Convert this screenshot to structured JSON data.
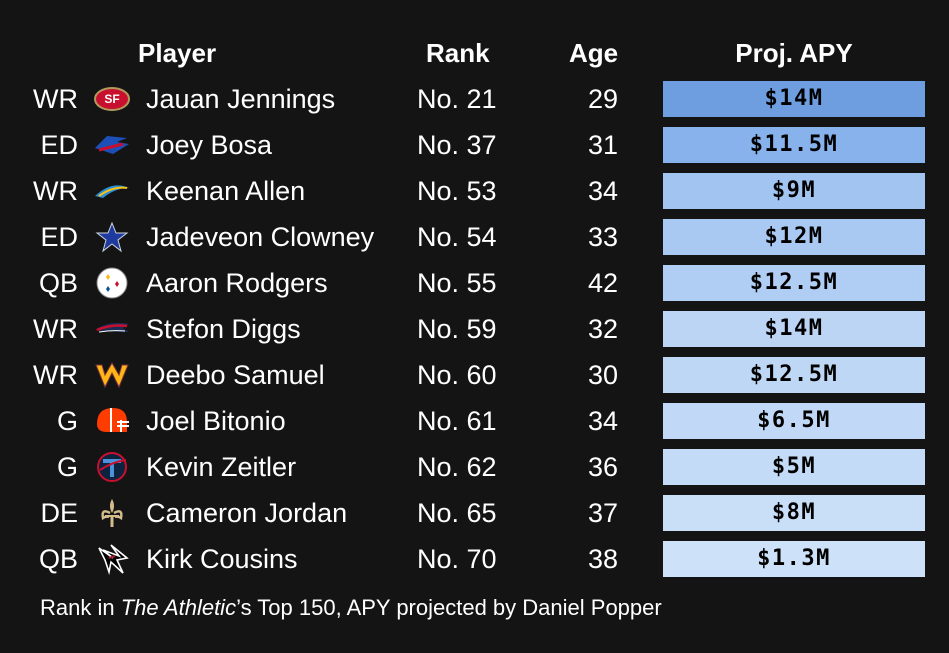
{
  "headers": {
    "player": "Player",
    "rank": "Rank",
    "age": "Age",
    "apy": "Proj. APY"
  },
  "footnote": {
    "prefix": "Rank in ",
    "italic": "The Athletic",
    "suffix": "’s Top 150, APY projected by Daniel Popper"
  },
  "chart_data": {
    "type": "table",
    "columns": [
      "Player",
      "Rank",
      "Age",
      "Proj. APY"
    ],
    "rows": [
      {
        "pos": "WR",
        "team_icon": "49ers-logo-icon",
        "team_color": "#c8102e",
        "player": "Jauan Jennings",
        "rank": "No. 21",
        "age": "29",
        "apy": "$14M",
        "shade": "#6f9ee0"
      },
      {
        "pos": "ED",
        "team_icon": "bills-logo-icon",
        "team_color": "#1d4fb8",
        "player": "Joey Bosa",
        "rank": "No. 37",
        "age": "31",
        "apy": "$11.5M",
        "shade": "#87b2ec"
      },
      {
        "pos": "WR",
        "team_icon": "chargers-logo-icon",
        "team_color": "#2a8fd6",
        "player": "Keenan Allen",
        "rank": "No. 53",
        "age": "34",
        "apy": "$9M",
        "shade": "#a2c4f0"
      },
      {
        "pos": "ED",
        "team_icon": "cowboys-logo-icon",
        "team_color": "#1f3a9e",
        "player": "Jadeveon Clowney",
        "rank": "No. 54",
        "age": "33",
        "apy": "$12M",
        "shade": "#a9c9f2"
      },
      {
        "pos": "QB",
        "team_icon": "steelers-logo-icon",
        "team_color": "#ffffff",
        "player": "Aaron Rodgers",
        "rank": "No. 55",
        "age": "42",
        "apy": "$12.5M",
        "shade": "#b0cdf3"
      },
      {
        "pos": "WR",
        "team_icon": "patriots-logo-icon",
        "team_color": "#c8102e",
        "player": "Stefon Diggs",
        "rank": "No. 59",
        "age": "32",
        "apy": "$14M",
        "shade": "#bcd5f5"
      },
      {
        "pos": "WR",
        "team_icon": "commanders-logo-icon",
        "team_color": "#ffb612",
        "player": "Deebo Samuel",
        "rank": "No. 60",
        "age": "30",
        "apy": "$12.5M",
        "shade": "#bed7f5"
      },
      {
        "pos": "G",
        "team_icon": "browns-logo-icon",
        "team_color": "#ff3c00",
        "player": "Joel Bitonio",
        "rank": "No. 61",
        "age": "34",
        "apy": "$6.5M",
        "shade": "#c1d9f6"
      },
      {
        "pos": "G",
        "team_icon": "titans-logo-icon",
        "team_color": "#4b92db",
        "player": "Kevin Zeitler",
        "rank": "No. 62",
        "age": "36",
        "apy": "$5M",
        "shade": "#c3dbf6"
      },
      {
        "pos": "DE",
        "team_icon": "saints-logo-icon",
        "team_color": "#d3bc8d",
        "player": "Cameron Jordan",
        "rank": "No. 65",
        "age": "37",
        "apy": "$8M",
        "shade": "#c9def7"
      },
      {
        "pos": "QB",
        "team_icon": "falcons-logo-icon",
        "team_color": "#a71930",
        "player": "Kirk Cousins",
        "rank": "No. 70",
        "age": "38",
        "apy": "$1.3M",
        "shade": "#cde1f8"
      }
    ]
  }
}
